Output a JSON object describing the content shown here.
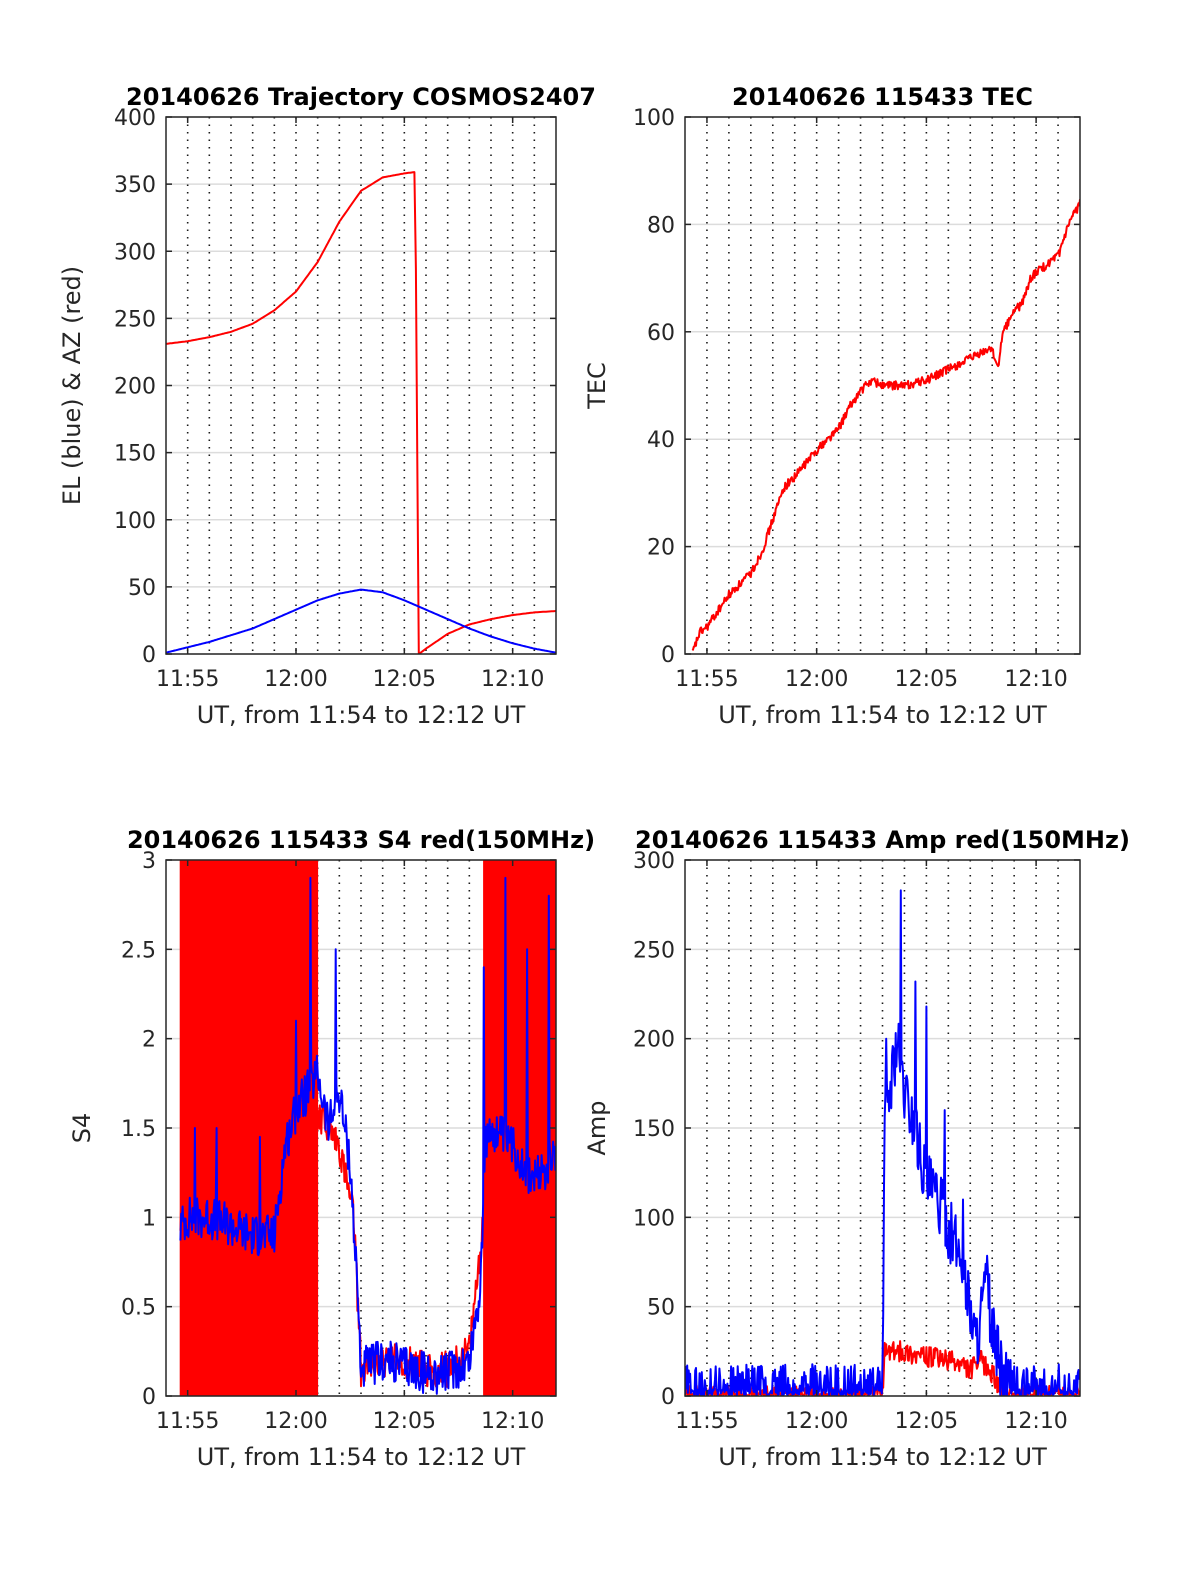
{
  "chart_data": [
    {
      "type": "line",
      "title": "20140626 Trajectory COSMOS2407",
      "xlabel": "UT, from 11:54 to 12:12 UT",
      "ylabel": "EL (blue) & AZ (red)",
      "xlim": [
        "11:54",
        "12:12"
      ],
      "ylim": [
        0,
        400
      ],
      "xticks": [
        "11:55",
        "12:00",
        "12:05",
        "12:10"
      ],
      "yticks": [
        "0",
        "50",
        "100",
        "150",
        "200",
        "250",
        "300",
        "350",
        "400"
      ],
      "grid": "major on, minor x dotted every minute",
      "series": [
        {
          "name": "AZ",
          "color": "#ff0000",
          "points": [
            [
              "11:54",
              231
            ],
            [
              "11:55",
              233
            ],
            [
              "11:56",
              236
            ],
            [
              "11:57",
              240
            ],
            [
              "11:58",
              246
            ],
            [
              "11:59",
              256
            ],
            [
              "12:00",
              270
            ],
            [
              "12:01",
              292
            ],
            [
              "12:02",
              322
            ],
            [
              "12:03",
              345
            ],
            [
              "12:04",
              355
            ],
            [
              "12:05",
              358
            ],
            [
              "12:05:30",
              359
            ],
            [
              "12:05:40",
              0
            ],
            [
              "12:06",
              4
            ],
            [
              "12:07",
              15
            ],
            [
              "12:08",
              22
            ],
            [
              "12:09",
              26
            ],
            [
              "12:10",
              29
            ],
            [
              "12:11",
              31
            ],
            [
              "12:12",
              32
            ]
          ]
        },
        {
          "name": "EL",
          "color": "#0000ff",
          "points": [
            [
              "11:54",
              1
            ],
            [
              "11:55",
              5
            ],
            [
              "11:56",
              9
            ],
            [
              "11:57",
              14
            ],
            [
              "11:58",
              19
            ],
            [
              "11:59",
              26
            ],
            [
              "12:00",
              33
            ],
            [
              "12:01",
              40
            ],
            [
              "12:02",
              45
            ],
            [
              "12:03",
              48
            ],
            [
              "12:04",
              46
            ],
            [
              "12:05",
              40
            ],
            [
              "12:06",
              33
            ],
            [
              "12:07",
              26
            ],
            [
              "12:08",
              19
            ],
            [
              "12:09",
              13
            ],
            [
              "12:10",
              8
            ],
            [
              "12:11",
              4
            ],
            [
              "12:12",
              1
            ]
          ]
        }
      ]
    },
    {
      "type": "line",
      "title": "20140626 115433 TEC",
      "xlabel": "UT, from 11:54 to 12:12 UT",
      "ylabel": "TEC",
      "xlim": [
        "11:54",
        "12:12"
      ],
      "ylim": [
        0,
        100
      ],
      "xticks": [
        "11:55",
        "12:00",
        "12:05",
        "12:10"
      ],
      "yticks": [
        "0",
        "20",
        "40",
        "60",
        "80",
        "100"
      ],
      "grid": "major on, minor x dotted every minute",
      "series": [
        {
          "name": "TEC",
          "color": "#ff0000",
          "noise": 0.8,
          "points": [
            [
              "11:54:20",
              0
            ],
            [
              "11:54:40",
              4
            ],
            [
              "11:55",
              5
            ],
            [
              "11:55:30",
              8
            ],
            [
              "11:56",
              11
            ],
            [
              "11:57",
              15
            ],
            [
              "11:57:30",
              19
            ],
            [
              "11:58",
              25
            ],
            [
              "11:58:30",
              31
            ],
            [
              "11:59",
              33
            ],
            [
              "12:00",
              38
            ],
            [
              "12:01",
              42
            ],
            [
              "12:01:30",
              46
            ],
            [
              "12:02",
              49
            ],
            [
              "12:02:30",
              51
            ],
            [
              "12:03",
              50
            ],
            [
              "12:04",
              50
            ],
            [
              "12:05",
              51
            ],
            [
              "12:06",
              53
            ],
            [
              "12:07",
              55
            ],
            [
              "12:08",
              57
            ],
            [
              "12:08:15",
              53
            ],
            [
              "12:08:30",
              60
            ],
            [
              "12:09",
              64
            ],
            [
              "12:09:20",
              65
            ],
            [
              "12:09:45",
              70
            ],
            [
              "12:10",
              71
            ],
            [
              "12:11",
              74
            ],
            [
              "12:11:30",
              80
            ],
            [
              "12:12",
              84
            ]
          ]
        }
      ]
    },
    {
      "type": "line",
      "title": "20140626 115433 S4 red(150MHz)",
      "xlabel": "UT, from 11:54 to 12:12 UT",
      "ylabel": "S4",
      "xlim": [
        "11:54",
        "12:12"
      ],
      "ylim": [
        0,
        3
      ],
      "xticks": [
        "11:55",
        "12:00",
        "12:05",
        "12:10"
      ],
      "yticks": [
        "0",
        "0.5",
        "1",
        "1.5",
        "2",
        "2.5",
        "3"
      ],
      "grid": "major on, minor x dotted every minute",
      "series": [
        {
          "name": "red",
          "color": "#ff0000",
          "noise": 0.1,
          "saturated_bands": [
            [
              "11:54:40",
              "12:01:00"
            ],
            [
              "12:08:40",
              "12:12"
            ]
          ],
          "points": [
            [
              "11:54:40",
              1.0
            ],
            [
              "11:56",
              1.0
            ],
            [
              "11:58",
              0.95
            ],
            [
              "12:00",
              1.3
            ],
            [
              "12:01",
              1.6
            ],
            [
              "12:02",
              1.4
            ],
            [
              "12:02:40",
              1.0
            ],
            [
              "12:03",
              0.15
            ],
            [
              "12:04",
              0.2
            ],
            [
              "12:05",
              0.2
            ],
            [
              "12:06",
              0.15
            ],
            [
              "12:07",
              0.15
            ],
            [
              "12:08",
              0.25
            ],
            [
              "12:08:40",
              1.0
            ],
            [
              "12:10",
              1.1
            ],
            [
              "12:12",
              1.2
            ]
          ]
        },
        {
          "name": "blue",
          "color": "#0000ff",
          "noise": 0.12,
          "spikes": [
            [
              "11:55:20",
              1.5
            ],
            [
              "11:56:20",
              1.5
            ],
            [
              "11:58:20",
              1.45
            ],
            [
              "12:00",
              2.1
            ],
            [
              "12:00:40",
              2.9
            ],
            [
              "12:01:50",
              2.5
            ],
            [
              "12:08:40",
              2.4
            ],
            [
              "12:09:40",
              2.9
            ],
            [
              "12:10:40",
              2.5
            ],
            [
              "12:11:40",
              2.8
            ]
          ],
          "points": [
            [
              "11:54:40",
              0.95
            ],
            [
              "11:55",
              1.0
            ],
            [
              "11:56",
              1.0
            ],
            [
              "11:57",
              0.95
            ],
            [
              "11:58",
              0.9
            ],
            [
              "11:59",
              0.9
            ],
            [
              "11:59:30",
              1.4
            ],
            [
              "12:00",
              1.6
            ],
            [
              "12:01",
              1.8
            ],
            [
              "12:01:30",
              1.5
            ],
            [
              "12:02",
              1.7
            ],
            [
              "12:02:30",
              1.3
            ],
            [
              "12:02:50",
              0.6
            ],
            [
              "12:03",
              0.15
            ],
            [
              "12:04",
              0.2
            ],
            [
              "12:05",
              0.17
            ],
            [
              "12:06",
              0.13
            ],
            [
              "12:07",
              0.13
            ],
            [
              "12:08",
              0.2
            ],
            [
              "12:08:30",
              0.6
            ],
            [
              "12:08:45",
              1.4
            ],
            [
              "12:09",
              1.5
            ],
            [
              "12:10",
              1.4
            ],
            [
              "12:11",
              1.2
            ],
            [
              "12:12",
              1.35
            ]
          ]
        }
      ]
    },
    {
      "type": "line",
      "title": "20140626 115433 Amp red(150MHz)",
      "xlabel": "UT, from 11:54 to 12:12 UT",
      "ylabel": "Amp",
      "xlim": [
        "11:54",
        "12:12"
      ],
      "ylim": [
        0,
        300
      ],
      "xticks": [
        "11:55",
        "12:00",
        "12:05",
        "12:10"
      ],
      "yticks": [
        "0",
        "50",
        "100",
        "150",
        "200",
        "250",
        "300"
      ],
      "grid": "major on, minor x dotted every minute",
      "series": [
        {
          "name": "red",
          "color": "#ff0000",
          "noise": 6,
          "points": [
            [
              "11:54",
              0
            ],
            [
              "12:03",
              0
            ],
            [
              "12:03:05",
              25
            ],
            [
              "12:04",
              25
            ],
            [
              "12:05",
              22
            ],
            [
              "12:06",
              20
            ],
            [
              "12:07",
              15
            ],
            [
              "12:07:30",
              20
            ],
            [
              "12:08",
              12
            ],
            [
              "12:08:40",
              0
            ],
            [
              "12:12",
              0
            ]
          ]
        },
        {
          "name": "blue",
          "color": "#0000ff",
          "noise": 18,
          "spikes": [
            [
              "12:03:10",
              200
            ],
            [
              "12:03:50",
              283
            ],
            [
              "12:04:30",
              232
            ],
            [
              "12:05",
              218
            ],
            [
              "12:05:50",
              160
            ],
            [
              "12:06:40",
              110
            ]
          ],
          "points": [
            [
              "11:54",
              0
            ],
            [
              "12:02:40",
              0
            ],
            [
              "12:03",
              2
            ],
            [
              "12:03:05",
              150
            ],
            [
              "12:03:40",
              200
            ],
            [
              "12:04",
              170
            ],
            [
              "12:04:30",
              150
            ],
            [
              "12:05",
              120
            ],
            [
              "12:05:30",
              110
            ],
            [
              "12:06",
              95
            ],
            [
              "12:06:30",
              80
            ],
            [
              "12:07",
              50
            ],
            [
              "12:07:15",
              30
            ],
            [
              "12:07:45",
              65
            ],
            [
              "12:08",
              35
            ],
            [
              "12:08:30",
              10
            ],
            [
              "12:09",
              0
            ],
            [
              "12:12",
              0
            ]
          ]
        }
      ]
    }
  ]
}
